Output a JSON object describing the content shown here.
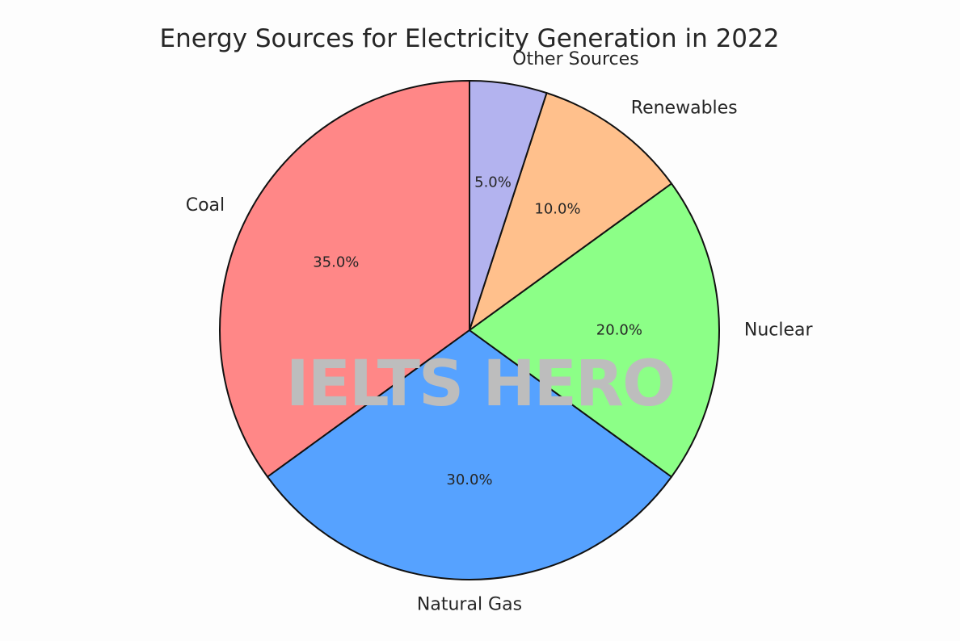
{
  "chart_data": {
    "type": "pie",
    "title": "Energy Sources for Electricity Generation in 2022",
    "start_angle_deg": 90,
    "direction": "counterclockwise",
    "slices": [
      {
        "label": "Coal",
        "value": 35.0,
        "pct_label": "35.0%",
        "color": "#ff8787"
      },
      {
        "label": "Natural Gas",
        "value": 30.0,
        "pct_label": "30.0%",
        "color": "#56a2ff"
      },
      {
        "label": "Nuclear",
        "value": 20.0,
        "pct_label": "20.0%",
        "color": "#8cff87"
      },
      {
        "label": "Renewables",
        "value": 10.0,
        "pct_label": "10.0%",
        "color": "#ffc08c"
      },
      {
        "label": "Other Sources",
        "value": 5.0,
        "pct_label": "5.0%",
        "color": "#b3b3ef"
      }
    ]
  },
  "watermark": "IELTS HERO"
}
